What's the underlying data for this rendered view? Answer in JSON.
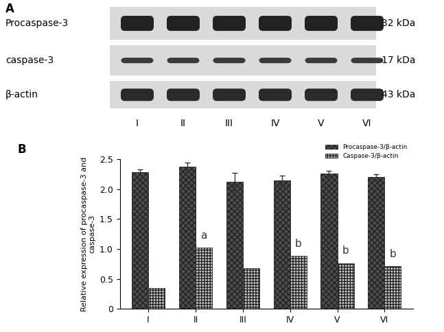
{
  "panel_a": {
    "label": "A",
    "rows": [
      {
        "name": "Procaspase-3",
        "size": "32 kDa"
      },
      {
        "name": "caspase-3",
        "size": "17 kDa"
      },
      {
        "name": "β-actin",
        "size": "43 kDa"
      }
    ],
    "lanes": [
      "I",
      "II",
      "III",
      "IV",
      "V",
      "VI"
    ]
  },
  "chart_data": {
    "type": "bar",
    "panel_label": "B",
    "ylabel": "Relative expression of procaspase-3 and caspase-3",
    "categories": [
      "I",
      "II",
      "III",
      "IV",
      "V",
      "VI"
    ],
    "ylim": [
      0,
      2.5
    ],
    "yticks": [
      0,
      0.5,
      {
        "value": 1,
        "label": "1.0"
      },
      1.5,
      {
        "value": 2,
        "label": "2.0"
      },
      2.5
    ],
    "legend": "upper right",
    "series": [
      {
        "name": "Procaspase-3/β-actin",
        "color": "#4d4d4d",
        "values": [
          2.28,
          2.38,
          2.12,
          2.15,
          2.26,
          2.2
        ],
        "errors": [
          0.05,
          0.07,
          0.15,
          0.08,
          0.05,
          0.05
        ]
      },
      {
        "name": "Caspase-3/β-actin",
        "color": "#c8c8c8",
        "values": [
          0.35,
          1.02,
          0.68,
          0.88,
          0.76,
          0.71
        ],
        "annotations": [
          null,
          "a",
          null,
          "b",
          "b",
          "b"
        ]
      }
    ]
  }
}
